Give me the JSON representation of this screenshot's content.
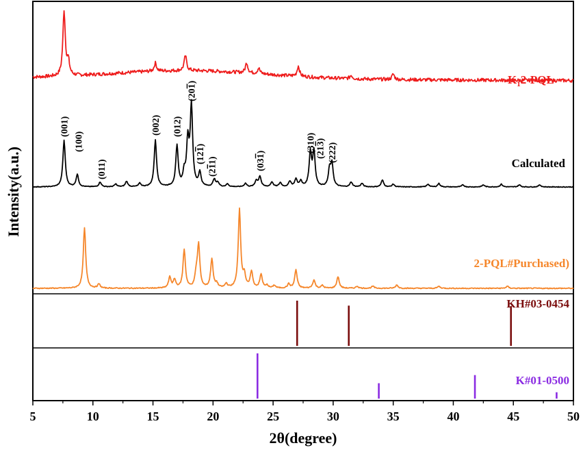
{
  "chart_data": {
    "type": "line",
    "xlabel": "2θ(degree)",
    "ylabel": "Intensity(a.u.)",
    "xlim": [
      5,
      50
    ],
    "x_ticks": [
      5,
      10,
      15,
      20,
      25,
      30,
      35,
      40,
      45,
      50
    ],
    "y_ticks_shown": false,
    "grid": false,
    "series": [
      {
        "name": "K12-PQL",
        "name_main": "K",
        "name_sub": "1",
        "name_rest": "2-PQL",
        "kind": "pattern",
        "color": "#ee1c1c",
        "peaks": [
          [
            7.6,
            95
          ],
          [
            7.95,
            20
          ],
          [
            15.2,
            12
          ],
          [
            17.7,
            22
          ],
          [
            22.8,
            15
          ],
          [
            23.8,
            8
          ],
          [
            27.1,
            15
          ],
          [
            31.5,
            5
          ],
          [
            35.0,
            8
          ]
        ],
        "baseline": 12,
        "noise": 2.5
      },
      {
        "name": "Calculated",
        "kind": "pattern",
        "color": "#000000",
        "peaks": [
          [
            7.6,
            68
          ],
          [
            8.7,
            18
          ],
          [
            10.6,
            7
          ],
          [
            11.9,
            4
          ],
          [
            12.8,
            8
          ],
          [
            13.9,
            5
          ],
          [
            15.2,
            68
          ],
          [
            17.0,
            59
          ],
          [
            17.6,
            18
          ],
          [
            17.9,
            64
          ],
          [
            18.2,
            117
          ],
          [
            18.9,
            20
          ],
          [
            20.1,
            11
          ],
          [
            20.4,
            6
          ],
          [
            21.2,
            4
          ],
          [
            22.7,
            5
          ],
          [
            23.6,
            9
          ],
          [
            23.9,
            15
          ],
          [
            24.9,
            7
          ],
          [
            25.6,
            6
          ],
          [
            26.4,
            8
          ],
          [
            26.9,
            11
          ],
          [
            27.3,
            8
          ],
          [
            28.1,
            49
          ],
          [
            28.4,
            50
          ],
          [
            29.7,
            24
          ],
          [
            29.9,
            32
          ],
          [
            31.5,
            7
          ],
          [
            32.4,
            5
          ],
          [
            34.1,
            10
          ],
          [
            35.0,
            4
          ],
          [
            37.9,
            4
          ],
          [
            38.8,
            5
          ],
          [
            40.8,
            3
          ],
          [
            42.5,
            3
          ],
          [
            44.0,
            4
          ],
          [
            45.5,
            3
          ],
          [
            47.2,
            3
          ]
        ],
        "baseline": 0,
        "noise": 0.5
      },
      {
        "name": "2-PQL#Purchased)",
        "kind": "pattern",
        "color": "#f5862a",
        "peaks": [
          [
            9.3,
            88
          ],
          [
            10.5,
            6
          ],
          [
            16.4,
            16
          ],
          [
            16.8,
            12
          ],
          [
            17.6,
            56
          ],
          [
            18.6,
            18
          ],
          [
            18.8,
            62
          ],
          [
            19.9,
            42
          ],
          [
            20.3,
            6
          ],
          [
            21.1,
            6
          ],
          [
            22.2,
            115
          ],
          [
            22.6,
            18
          ],
          [
            23.2,
            24
          ],
          [
            24.0,
            20
          ],
          [
            24.5,
            4
          ],
          [
            25.1,
            4
          ],
          [
            26.3,
            6
          ],
          [
            26.9,
            27
          ],
          [
            28.4,
            12
          ],
          [
            29.1,
            4
          ],
          [
            30.4,
            17
          ],
          [
            32.0,
            3
          ],
          [
            33.3,
            3
          ],
          [
            35.3,
            5
          ],
          [
            38.8,
            3
          ],
          [
            44.5,
            3
          ]
        ],
        "baseline": 0,
        "noise": 0.7
      },
      {
        "name": "KH#03-0454",
        "kind": "sticks",
        "color": "#7a0c0c",
        "sticks": [
          [
            27.0,
            1.0
          ],
          [
            31.3,
            0.89
          ],
          [
            44.8,
            0.88
          ]
        ]
      },
      {
        "name": "K#01-0500",
        "kind": "sticks",
        "color": "#8a2be2",
        "sticks": [
          [
            23.7,
            1.0
          ],
          [
            33.8,
            0.34
          ],
          [
            41.8,
            0.52
          ],
          [
            48.6,
            0.14
          ]
        ]
      }
    ],
    "annotations": [
      {
        "hkl": "(001)",
        "text": "(001)",
        "x": 7.6
      },
      {
        "hkl": "(100)",
        "text": "(100)",
        "x": 8.8
      },
      {
        "hkl": "(011)",
        "text": "(011)",
        "x": 10.7
      },
      {
        "hkl": "(002)",
        "text": "(002)",
        "x": 15.2
      },
      {
        "hkl": "(012)",
        "text": "(012)",
        "x": 17.0
      },
      {
        "hkl": "(20-1)",
        "text": "(20",
        "bar": "1",
        "tail": ")",
        "x": 18.2
      },
      {
        "hkl": "(12-1)",
        "text": "(12",
        "bar": "1",
        "tail": ")",
        "x": 18.9
      },
      {
        "hkl": "(2-11)",
        "text": "(2",
        "bar": "1",
        "tail": "1)",
        "x": 19.9
      },
      {
        "hkl": "(03-1)",
        "text": "(03",
        "bar": "1",
        "tail": ")",
        "x": 23.9
      },
      {
        "hkl": "(310)",
        "text": "(310)",
        "x": 28.1
      },
      {
        "hkl": "(21-3)",
        "text": "(21",
        "bar": "3",
        "tail": ")",
        "x": 28.9
      },
      {
        "hkl": "(222)",
        "text": "(222)",
        "x": 29.9
      }
    ]
  }
}
